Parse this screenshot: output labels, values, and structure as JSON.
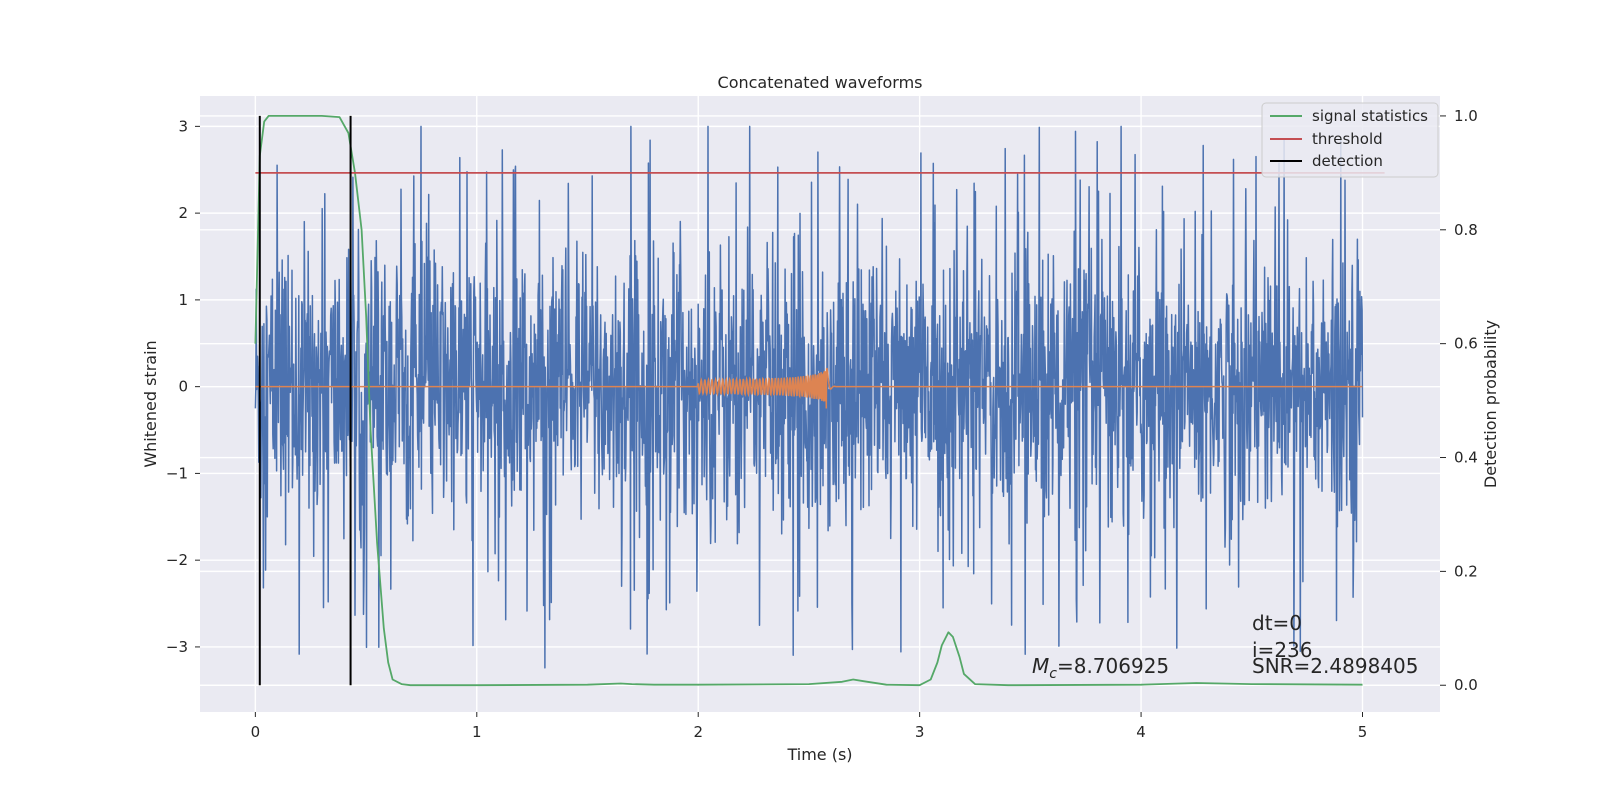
{
  "chart_data": {
    "type": "line",
    "title": "Concatenated waveforms",
    "xlabel": "Time (s)",
    "ylabel_left": "Whitened strain",
    "ylabel_right": "Detection probability",
    "xlim": [
      -0.25,
      5.35
    ],
    "ylim_left": [
      -3.75,
      3.35
    ],
    "ylim_right": [
      -0.047,
      1.035
    ],
    "x_ticks": [
      0,
      1,
      2,
      3,
      4,
      5
    ],
    "x_tick_labels": [
      "0",
      "1",
      "2",
      "3",
      "4",
      "5"
    ],
    "y_ticks_left": [
      -3,
      -2,
      -1,
      0,
      1,
      2,
      3
    ],
    "y_tick_labels_left": [
      "−3",
      "−2",
      "−1",
      "0",
      "1",
      "2",
      "3"
    ],
    "y_ticks_right": [
      0.0,
      0.2,
      0.4,
      0.6,
      0.8,
      1.0
    ],
    "y_tick_labels_right": [
      "0.0",
      "0.2",
      "0.4",
      "0.6",
      "0.8",
      "1.0"
    ],
    "grid": true,
    "legend_position": "top-right",
    "legend": [
      {
        "label": "signal statistics",
        "color": "#55a868"
      },
      {
        "label": "threshold",
        "color": "#c44e52"
      },
      {
        "label": "detection",
        "color": "#000000"
      }
    ],
    "series": [
      {
        "axis": "left",
        "kind": "noise",
        "color": "#4c72b0",
        "x_range": [
          0,
          5
        ],
        "typical_amplitude": 1.3,
        "peak_range": [
          -3.5,
          3.0
        ]
      },
      {
        "axis": "left",
        "kind": "chirp",
        "color": "#dd8452",
        "x_range": [
          0,
          5
        ],
        "chirp_start": 2.0,
        "chirp_peak_time": 2.58,
        "chirp_end": 2.62,
        "start_amplitude": 0.08,
        "peak_amplitude_positive": 0.33,
        "peak_amplitude_negative": -0.45
      },
      {
        "axis": "right",
        "label": "signal statistics",
        "color": "#55a868",
        "x": [
          0.0,
          0.02,
          0.04,
          0.06,
          0.1,
          0.2,
          0.3,
          0.38,
          0.42,
          0.45,
          0.48,
          0.5,
          0.52,
          0.55,
          0.58,
          0.6,
          0.62,
          0.66,
          0.7,
          1.0,
          1.5,
          1.65,
          1.7,
          1.8,
          2.0,
          2.5,
          2.65,
          2.7,
          2.75,
          2.85,
          3.0,
          3.05,
          3.08,
          3.1,
          3.13,
          3.15,
          3.18,
          3.2,
          3.25,
          3.4,
          4.0,
          4.25,
          4.5,
          5.0
        ],
        "y": [
          0.6,
          0.93,
          0.99,
          1.0,
          1.0,
          1.0,
          1.0,
          0.998,
          0.97,
          0.9,
          0.8,
          0.65,
          0.45,
          0.25,
          0.1,
          0.04,
          0.01,
          0.002,
          0.0,
          0.0,
          0.001,
          0.003,
          0.002,
          0.001,
          0.001,
          0.002,
          0.006,
          0.01,
          0.007,
          0.001,
          0.0,
          0.01,
          0.04,
          0.07,
          0.093,
          0.085,
          0.05,
          0.02,
          0.002,
          0.0,
          0.001,
          0.004,
          0.002,
          0.001
        ]
      },
      {
        "axis": "right",
        "label": "threshold",
        "color": "#c44e52",
        "x": [
          0.0,
          5.1
        ],
        "y": [
          0.9,
          0.9
        ]
      },
      {
        "axis": "right",
        "label": "detection",
        "color": "#000000",
        "kind": "vlines",
        "x": [
          0.02,
          0.43
        ],
        "y_range": [
          0.0,
          1.0
        ]
      }
    ],
    "annotations": {
      "mc_symbol": "M",
      "mc_subscript": "c",
      "mc_value": "=8.706925",
      "dt": "dt=0",
      "i": "i=236",
      "snr": "SNR=2.4898405"
    }
  }
}
